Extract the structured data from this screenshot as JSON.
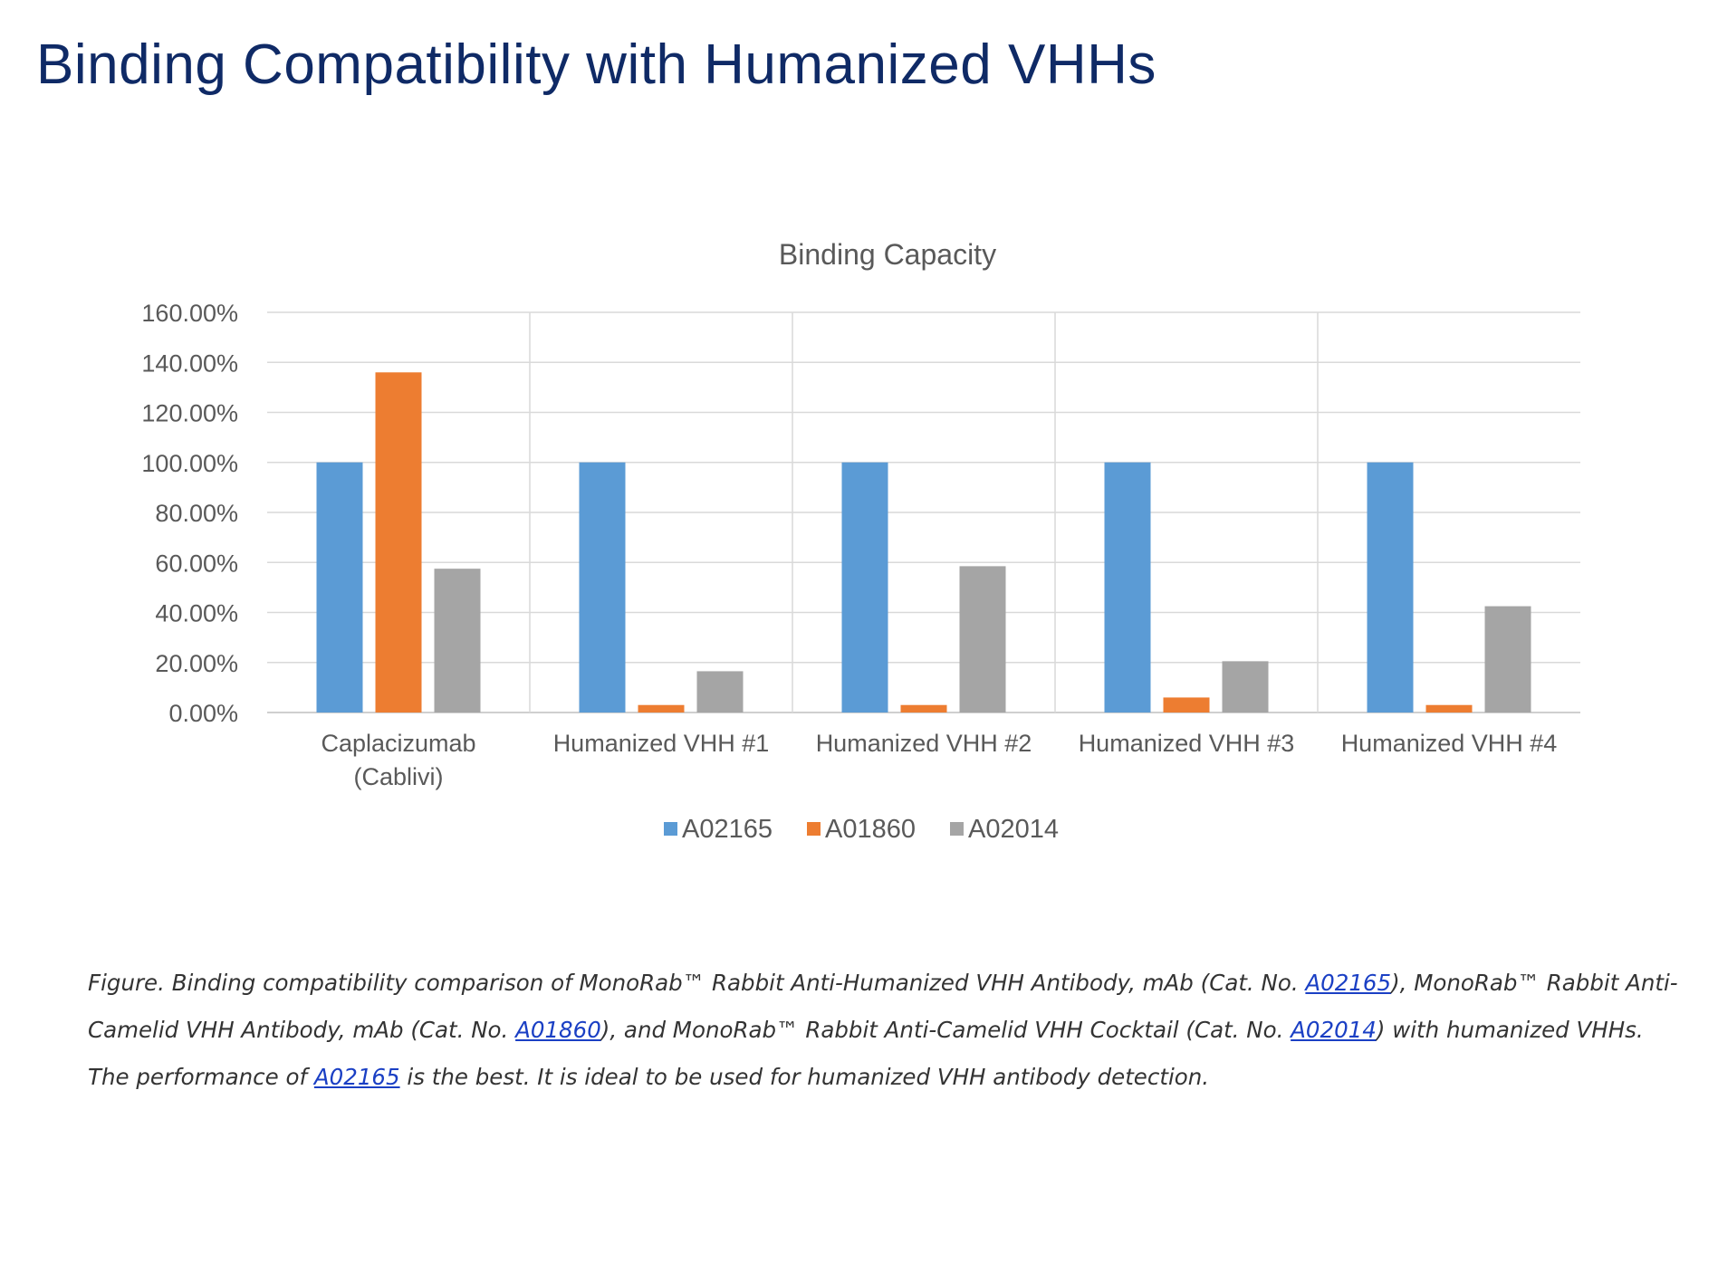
{
  "page": {
    "title": "Binding Compatibility with Humanized VHHs"
  },
  "chart_data": {
    "type": "bar",
    "title": "Binding Capacity",
    "xlabel": "",
    "ylabel": "",
    "ylim": [
      0,
      160
    ],
    "y_ticks": [
      "0.00%",
      "20.00%",
      "40.00%",
      "60.00%",
      "80.00%",
      "100.00%",
      "120.00%",
      "140.00%",
      "160.00%"
    ],
    "categories": [
      [
        "Caplacizumab",
        "(Cablivi)"
      ],
      [
        "Humanized VHH #1"
      ],
      [
        "Humanized VHH #2"
      ],
      [
        "Humanized VHH #3"
      ],
      [
        "Humanized VHH #4"
      ]
    ],
    "series": [
      {
        "name": "A02165",
        "color": "#5b9bd5",
        "values": [
          100,
          100,
          100,
          100,
          100
        ]
      },
      {
        "name": "A01860",
        "color": "#ed7d31",
        "values": [
          136,
          3,
          3,
          6,
          3
        ]
      },
      {
        "name": "A02014",
        "color": "#a5a5a5",
        "values": [
          57.5,
          16.5,
          58.5,
          20.5,
          42.5
        ]
      }
    ],
    "grid": true,
    "legend_position": "bottom"
  },
  "caption": {
    "seg1": "Figure. Binding compatibility comparison of MonoRab™ Rabbit Anti-Humanized VHH Antibody, mAb (Cat. No. ",
    "link1": "A02165",
    "seg2": "), MonoRab™ Rabbit Anti-Camelid VHH Antibody, mAb (Cat. No. ",
    "link2": "A01860",
    "seg3": "), and MonoRab™ Rabbit Anti-Camelid VHH Cocktail (Cat. No. ",
    "link3": "A02014",
    "seg4": ") with humanized VHHs. The performance of ",
    "link4": "A02165",
    "seg5": " is the best. It is ideal to be used for humanized VHH antibody detection."
  }
}
